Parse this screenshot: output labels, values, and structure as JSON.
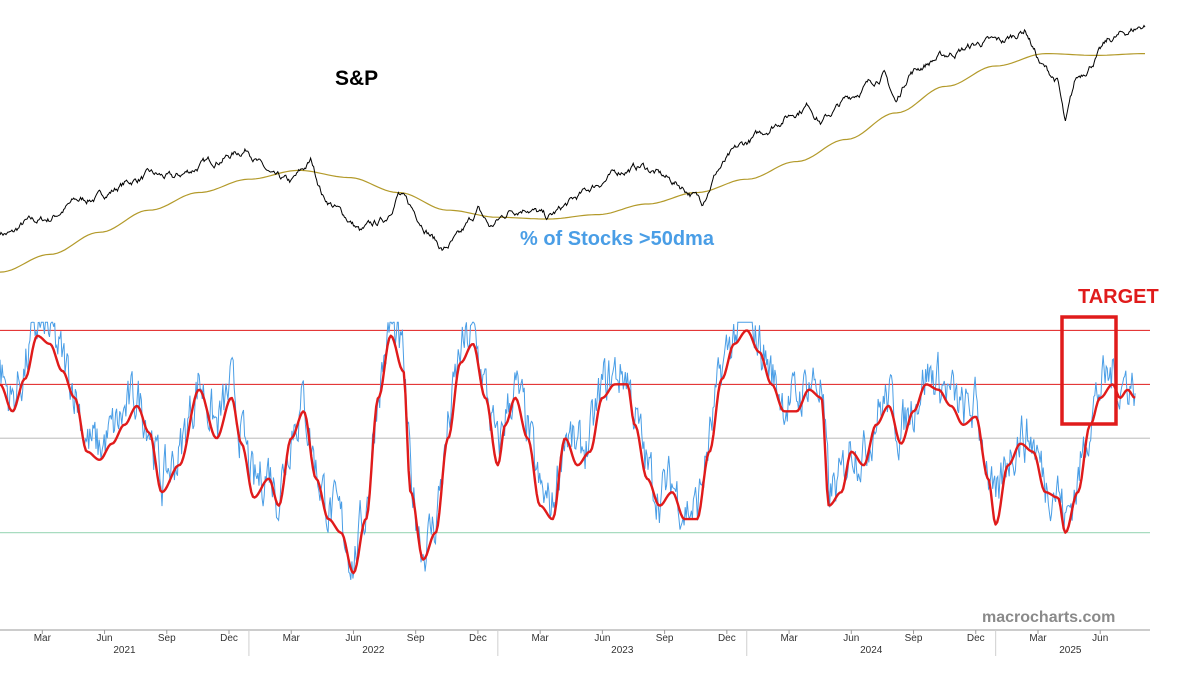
{
  "chart_data": {
    "type": "line",
    "title": "S&P vs % of Stocks >50dma",
    "colors": {
      "sp_price": "#000000",
      "sp_ma": "#b39a2a",
      "pct_raw": "#4a9ee6",
      "pct_smooth": "#e01b1b",
      "level_top": "#e01b1b",
      "level_upper": "#e01b1b",
      "level_mid": "#c8c8c8",
      "level_low": "#a8dcc0",
      "target": "#e01b1b",
      "watermark": "#8a8a8a"
    },
    "x_range": [
      2021.0,
      2025.62
    ],
    "labels": {
      "top_panel": "S&P",
      "bottom_panel": "% of Stocks >50dma",
      "target": "TARGET",
      "watermark": "macrocharts.com"
    },
    "x_ticks": [
      {
        "label": "Mar",
        "x": 2021.17
      },
      {
        "label": "Jun",
        "x": 2021.42
      },
      {
        "label": "Sep",
        "x": 2021.67
      },
      {
        "label": "Dec",
        "x": 2021.92
      },
      {
        "label": "Mar",
        "x": 2022.17
      },
      {
        "label": "Jun",
        "x": 2022.42
      },
      {
        "label": "Sep",
        "x": 2022.67
      },
      {
        "label": "Dec",
        "x": 2022.92
      },
      {
        "label": "Mar",
        "x": 2023.17
      },
      {
        "label": "Jun",
        "x": 2023.42
      },
      {
        "label": "Sep",
        "x": 2023.67
      },
      {
        "label": "Dec",
        "x": 2023.92
      },
      {
        "label": "Mar",
        "x": 2024.17
      },
      {
        "label": "Jun",
        "x": 2024.42
      },
      {
        "label": "Sep",
        "x": 2024.67
      },
      {
        "label": "Dec",
        "x": 2024.92
      },
      {
        "label": "Mar",
        "x": 2025.17
      },
      {
        "label": "Jun",
        "x": 2025.42
      }
    ],
    "year_ticks": [
      {
        "label": "2021",
        "x": 2021.5
      },
      {
        "label": "2022",
        "x": 2022.5
      },
      {
        "label": "2023",
        "x": 2023.5
      },
      {
        "label": "2024",
        "x": 2024.5
      },
      {
        "label": "2025",
        "x": 2025.3
      }
    ],
    "sp_range": [
      3600,
      6200
    ],
    "sp_price": [
      [
        2021.0,
        3800
      ],
      [
        2021.05,
        3780
      ],
      [
        2021.1,
        3900
      ],
      [
        2021.2,
        3950
      ],
      [
        2021.3,
        4150
      ],
      [
        2021.4,
        4200
      ],
      [
        2021.5,
        4350
      ],
      [
        2021.6,
        4450
      ],
      [
        2021.7,
        4400
      ],
      [
        2021.8,
        4550
      ],
      [
        2021.9,
        4650
      ],
      [
        2021.95,
        4700
      ],
      [
        2022.0,
        4750
      ],
      [
        2022.05,
        4550
      ],
      [
        2022.1,
        4400
      ],
      [
        2022.17,
        4350
      ],
      [
        2022.25,
        4600
      ],
      [
        2022.3,
        4200
      ],
      [
        2022.38,
        4000
      ],
      [
        2022.45,
        3800
      ],
      [
        2022.55,
        3950
      ],
      [
        2022.6,
        4250
      ],
      [
        2022.7,
        3900
      ],
      [
        2022.78,
        3600
      ],
      [
        2022.85,
        3750
      ],
      [
        2022.92,
        4050
      ],
      [
        2022.97,
        3850
      ],
      [
        2023.05,
        4050
      ],
      [
        2023.12,
        4100
      ],
      [
        2023.2,
        3950
      ],
      [
        2023.3,
        4150
      ],
      [
        2023.4,
        4350
      ],
      [
        2023.5,
        4500
      ],
      [
        2023.58,
        4550
      ],
      [
        2023.65,
        4450
      ],
      [
        2023.75,
        4300
      ],
      [
        2023.82,
        4150
      ],
      [
        2023.88,
        4500
      ],
      [
        2023.97,
        4750
      ],
      [
        2024.05,
        4900
      ],
      [
        2024.15,
        5100
      ],
      [
        2024.25,
        5250
      ],
      [
        2024.3,
        5050
      ],
      [
        2024.4,
        5300
      ],
      [
        2024.5,
        5500
      ],
      [
        2024.55,
        5600
      ],
      [
        2024.6,
        5250
      ],
      [
        2024.65,
        5600
      ],
      [
        2024.75,
        5750
      ],
      [
        2024.85,
        5850
      ],
      [
        2024.95,
        5950
      ],
      [
        2025.03,
        5950
      ],
      [
        2025.12,
        6100
      ],
      [
        2025.18,
        5700
      ],
      [
        2025.25,
        5500
      ],
      [
        2025.28,
        5000
      ],
      [
        2025.32,
        5500
      ],
      [
        2025.38,
        5700
      ],
      [
        2025.45,
        5950
      ],
      [
        2025.52,
        6050
      ],
      [
        2025.6,
        6150
      ]
    ],
    "sp_ma200": [
      [
        2021.0,
        3350
      ],
      [
        2021.2,
        3550
      ],
      [
        2021.4,
        3800
      ],
      [
        2021.6,
        4050
      ],
      [
        2021.8,
        4250
      ],
      [
        2022.0,
        4400
      ],
      [
        2022.2,
        4500
      ],
      [
        2022.4,
        4420
      ],
      [
        2022.6,
        4250
      ],
      [
        2022.8,
        4050
      ],
      [
        2023.0,
        3970
      ],
      [
        2023.2,
        3950
      ],
      [
        2023.4,
        4000
      ],
      [
        2023.6,
        4120
      ],
      [
        2023.8,
        4250
      ],
      [
        2024.0,
        4400
      ],
      [
        2024.2,
        4600
      ],
      [
        2024.4,
        4850
      ],
      [
        2024.6,
        5150
      ],
      [
        2024.8,
        5450
      ],
      [
        2025.0,
        5680
      ],
      [
        2025.2,
        5820
      ],
      [
        2025.4,
        5800
      ],
      [
        2025.6,
        5820
      ]
    ],
    "pct_range": [
      -10,
      105
    ],
    "levels": {
      "top": 90,
      "upper": 70,
      "mid": 50,
      "low": 15
    },
    "pct_smoothed": [
      [
        2021.0,
        70
      ],
      [
        2021.05,
        60
      ],
      [
        2021.1,
        72
      ],
      [
        2021.15,
        88
      ],
      [
        2021.2,
        85
      ],
      [
        2021.25,
        75
      ],
      [
        2021.3,
        65
      ],
      [
        2021.35,
        45
      ],
      [
        2021.4,
        42
      ],
      [
        2021.45,
        48
      ],
      [
        2021.5,
        55
      ],
      [
        2021.55,
        62
      ],
      [
        2021.6,
        52
      ],
      [
        2021.65,
        30
      ],
      [
        2021.72,
        40
      ],
      [
        2021.8,
        68
      ],
      [
        2021.87,
        50
      ],
      [
        2021.93,
        65
      ],
      [
        2021.97,
        48
      ],
      [
        2022.02,
        28
      ],
      [
        2022.08,
        35
      ],
      [
        2022.12,
        25
      ],
      [
        2022.17,
        50
      ],
      [
        2022.22,
        60
      ],
      [
        2022.27,
        35
      ],
      [
        2022.32,
        20
      ],
      [
        2022.37,
        15
      ],
      [
        2022.42,
        0
      ],
      [
        2022.47,
        20
      ],
      [
        2022.52,
        65
      ],
      [
        2022.57,
        88
      ],
      [
        2022.62,
        75
      ],
      [
        2022.65,
        30
      ],
      [
        2022.7,
        5
      ],
      [
        2022.75,
        15
      ],
      [
        2022.8,
        50
      ],
      [
        2022.85,
        78
      ],
      [
        2022.9,
        85
      ],
      [
        2022.95,
        65
      ],
      [
        2023.0,
        40
      ],
      [
        2023.03,
        55
      ],
      [
        2023.07,
        65
      ],
      [
        2023.12,
        50
      ],
      [
        2023.17,
        25
      ],
      [
        2023.22,
        20
      ],
      [
        2023.27,
        50
      ],
      [
        2023.32,
        40
      ],
      [
        2023.37,
        45
      ],
      [
        2023.42,
        65
      ],
      [
        2023.47,
        70
      ],
      [
        2023.52,
        70
      ],
      [
        2023.55,
        55
      ],
      [
        2023.6,
        35
      ],
      [
        2023.65,
        25
      ],
      [
        2023.7,
        30
      ],
      [
        2023.75,
        20
      ],
      [
        2023.8,
        20
      ],
      [
        2023.85,
        45
      ],
      [
        2023.9,
        72
      ],
      [
        2023.95,
        85
      ],
      [
        2024.0,
        90
      ],
      [
        2024.05,
        82
      ],
      [
        2024.1,
        70
      ],
      [
        2024.15,
        60
      ],
      [
        2024.2,
        60
      ],
      [
        2024.25,
        68
      ],
      [
        2024.3,
        65
      ],
      [
        2024.33,
        25
      ],
      [
        2024.38,
        30
      ],
      [
        2024.42,
        45
      ],
      [
        2024.47,
        40
      ],
      [
        2024.52,
        55
      ],
      [
        2024.57,
        62
      ],
      [
        2024.62,
        48
      ],
      [
        2024.67,
        60
      ],
      [
        2024.72,
        70
      ],
      [
        2024.77,
        68
      ],
      [
        2024.82,
        62
      ],
      [
        2024.87,
        55
      ],
      [
        2024.92,
        58
      ],
      [
        2024.97,
        35
      ],
      [
        2025.0,
        18
      ],
      [
        2025.05,
        40
      ],
      [
        2025.1,
        48
      ],
      [
        2025.15,
        45
      ],
      [
        2025.2,
        30
      ],
      [
        2025.25,
        28
      ],
      [
        2025.28,
        15
      ],
      [
        2025.33,
        30
      ],
      [
        2025.38,
        55
      ],
      [
        2025.42,
        65
      ],
      [
        2025.47,
        70
      ],
      [
        2025.5,
        65
      ],
      [
        2025.53,
        68
      ],
      [
        2025.56,
        65
      ]
    ]
  }
}
